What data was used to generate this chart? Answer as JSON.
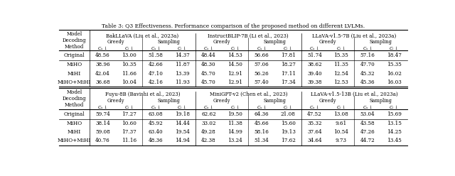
{
  "title": "Table 3: Q3 Effectiveness. Performance comparison of the proposed method on different LVLMs.",
  "top_models": [
    "BakLLaVA (Liu et al., 2023a)",
    "InstructBLIP-7B (Li et al., 2023)",
    "LLaVA-v1.5-7B (Liu et al., 2023a)"
  ],
  "bottom_models": [
    "Fuyu-8B (Bavishi et al., 2023)",
    "MiniGPT-v2 (Chen et al., 2023)",
    "LLaVA-v1.5-13B (Liu et al., 2023a)"
  ],
  "top_data": {
    "BakLLaVA": {
      "Original": [
        48.56,
        13.0,
        51.58,
        14.37
      ],
      "MiHO": [
        38.96,
        10.35,
        42.66,
        11.87
      ],
      "MiHI": [
        42.04,
        11.66,
        47.1,
        13.39
      ],
      "MiHO+MiHI": [
        36.68,
        10.04,
        42.16,
        11.93
      ]
    },
    "InstructBLIP": {
      "Original": [
        48.44,
        14.53,
        56.66,
        17.81
      ],
      "MiHO": [
        48.3,
        14.5,
        57.06,
        18.27
      ],
      "MiHI": [
        45.7,
        12.91,
        56.26,
        17.11
      ],
      "MiHO+MiHI": [
        45.7,
        12.91,
        57.4,
        17.34
      ]
    },
    "LLaVA7B": {
      "Original": [
        51.74,
        15.35,
        57.16,
        18.47
      ],
      "MiHO": [
        38.62,
        11.35,
        47.7,
        15.35
      ],
      "MiHI": [
        39.4,
        12.54,
        45.32,
        16.02
      ],
      "MiHO+MiHI": [
        39.38,
        12.53,
        45.36,
        16.03
      ]
    }
  },
  "bottom_data": {
    "Fuyu8B": {
      "Original": [
        59.74,
        17.27,
        63.08,
        19.18
      ],
      "MiHO": [
        38.14,
        10.6,
        45.92,
        14.44
      ],
      "MiHI": [
        59.08,
        17.37,
        63.4,
        19.54
      ],
      "MiHO+MiHI": [
        40.76,
        11.16,
        48.36,
        14.94
      ]
    },
    "MiniGPT": {
      "Original": [
        62.62,
        19.5,
        64.36,
        21.08
      ],
      "MiHO": [
        33.02,
        11.38,
        45.66,
        15.6
      ],
      "MiHI": [
        49.28,
        14.99,
        58.16,
        19.13
      ],
      "MiHO+MiHI": [
        42.38,
        13.24,
        51.34,
        17.62
      ]
    },
    "LLaVA13B": {
      "Original": [
        47.52,
        13.08,
        53.04,
        15.69
      ],
      "MiHO": [
        35.32,
        9.61,
        43.58,
        13.15
      ],
      "MiHI": [
        37.64,
        10.54,
        47.26,
        14.25
      ],
      "MiHO+MiHI": [
        34.64,
        9.73,
        44.72,
        13.45
      ]
    }
  }
}
